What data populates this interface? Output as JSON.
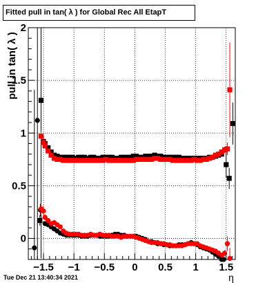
{
  "title": "Fitted pull in tan( λ ) for Global Rec All EtapT",
  "timestamp": "Tue Dec 21 13:40:34 2021",
  "chart_data": {
    "type": "scatter",
    "title": "Fitted pull in tan( λ ) for Global Rec All EtapT",
    "xlabel": "η",
    "ylabel": "pull in tan( λ )",
    "xlim": [
      -1.75,
      1.65
    ],
    "ylim": [
      -0.2,
      2.0
    ],
    "grid": true,
    "xticks": [
      -1.5,
      -1,
      -0.5,
      0,
      0.5,
      1,
      1.5
    ],
    "xtick_labels": [
      "−1.5",
      "−1",
      "−0.5",
      "0",
      "0.5",
      "1",
      "1.5"
    ],
    "yticks": [
      0,
      0.5,
      1,
      1.5,
      2
    ],
    "ytick_labels": [
      "0",
      "0.5",
      "1",
      "1.5",
      "2"
    ],
    "series": [
      {
        "color": "#000000",
        "marker": "circle",
        "x": [
          -1.65,
          -1.6,
          -1.55,
          -1.475,
          -1.425,
          -1.375,
          -1.325,
          -1.275,
          -1.225,
          -1.175,
          -1.125,
          -1.075,
          -1.025,
          -0.975,
          -0.925,
          -0.875,
          -0.825,
          -0.775,
          -0.725,
          -0.675,
          -0.625,
          -0.575,
          -0.525,
          -0.475,
          -0.425,
          -0.375,
          -0.325,
          -0.275,
          -0.225,
          -0.175,
          -0.125,
          -0.075,
          -0.025,
          0.025,
          0.075,
          0.125,
          0.175,
          0.225,
          0.275,
          0.325,
          0.375,
          0.425,
          0.475,
          0.525,
          0.575,
          0.625,
          0.675,
          0.725,
          0.775,
          0.825,
          0.875,
          0.925,
          0.975,
          1.025,
          1.075,
          1.125,
          1.175,
          1.225,
          1.275,
          1.325,
          1.375,
          1.425,
          1.46
        ],
        "y": [
          -0.09,
          1.12,
          0.27,
          0.14,
          0.13,
          0.11,
          0.09,
          0.07,
          0.05,
          0.04,
          0.03,
          0.03,
          0.03,
          0.03,
          0.03,
          0.02,
          0.02,
          0.02,
          0.03,
          0.03,
          0.03,
          0.02,
          0.02,
          0.02,
          0.02,
          0.03,
          0.04,
          0.04,
          0.03,
          0.03,
          0.02,
          0.02,
          0.02,
          0.02,
          0.01,
          0.0,
          -0.01,
          -0.03,
          -0.03,
          -0.04,
          -0.05,
          -0.05,
          -0.06,
          -0.06,
          -0.07,
          -0.07,
          -0.07,
          -0.06,
          -0.06,
          -0.06,
          -0.05,
          -0.04,
          -0.05,
          -0.06,
          -0.08,
          -0.09,
          -0.1,
          -0.11,
          -0.13,
          -0.15,
          -0.17,
          -0.2,
          -0.2
        ],
        "yerr": [
          1.5,
          1.5,
          0.06,
          0.02,
          0.02,
          0.02,
          0.02,
          0.02,
          0.02,
          0.02,
          0.02,
          0.02,
          0.02,
          0.02,
          0.02,
          0.02,
          0.02,
          0.02,
          0.02,
          0.02,
          0.02,
          0.02,
          0.02,
          0.02,
          0.02,
          0.02,
          0.02,
          0.02,
          0.02,
          0.02,
          0.02,
          0.02,
          0.02,
          0.02,
          0.02,
          0.02,
          0.02,
          0.02,
          0.02,
          0.02,
          0.02,
          0.02,
          0.02,
          0.02,
          0.02,
          0.02,
          0.02,
          0.02,
          0.02,
          0.02,
          0.02,
          0.02,
          0.02,
          0.02,
          0.02,
          0.02,
          0.02,
          0.02,
          0.02,
          0.02,
          0.02,
          0.02,
          0.02
        ]
      },
      {
        "color": "#000000",
        "marker": "square",
        "x": [
          -1.56,
          -1.54,
          -1.5,
          -1.475,
          -1.425,
          -1.375,
          -1.325,
          -1.275,
          -1.225,
          -1.175,
          -1.125,
          -1.075,
          -1.025,
          -0.975,
          -0.925,
          -0.875,
          -0.825,
          -0.775,
          -0.725,
          -0.675,
          -0.625,
          -0.575,
          -0.525,
          -0.475,
          -0.425,
          -0.375,
          -0.325,
          -0.275,
          -0.225,
          -0.175,
          -0.125,
          -0.075,
          -0.025,
          0.025,
          0.075,
          0.125,
          0.175,
          0.225,
          0.275,
          0.325,
          0.375,
          0.425,
          0.475,
          0.525,
          0.575,
          0.625,
          0.675,
          0.725,
          0.775,
          0.825,
          0.875,
          0.925,
          0.975,
          1.025,
          1.075,
          1.125,
          1.175,
          1.225,
          1.275,
          1.325,
          1.375,
          1.425,
          1.5,
          1.55,
          1.61
        ],
        "y": [
          0.17,
          1.31,
          0.92,
          0.9,
          0.86,
          0.82,
          0.79,
          0.78,
          0.77,
          0.77,
          0.77,
          0.77,
          0.77,
          0.76,
          0.77,
          0.77,
          0.77,
          0.76,
          0.77,
          0.77,
          0.76,
          0.76,
          0.77,
          0.77,
          0.77,
          0.77,
          0.76,
          0.76,
          0.77,
          0.77,
          0.77,
          0.77,
          0.78,
          0.78,
          0.77,
          0.77,
          0.78,
          0.78,
          0.78,
          0.79,
          0.78,
          0.78,
          0.77,
          0.77,
          0.77,
          0.77,
          0.77,
          0.77,
          0.76,
          0.76,
          0.76,
          0.76,
          0.76,
          0.76,
          0.76,
          0.76,
          0.76,
          0.77,
          0.77,
          0.78,
          0.79,
          0.8,
          0.7,
          0.57,
          1.09
        ],
        "yerr": [
          0.05,
          1.5,
          0.05,
          0.02,
          0.02,
          0.02,
          0.02,
          0.02,
          0.02,
          0.02,
          0.02,
          0.02,
          0.02,
          0.02,
          0.02,
          0.02,
          0.02,
          0.02,
          0.02,
          0.02,
          0.02,
          0.02,
          0.02,
          0.02,
          0.02,
          0.02,
          0.02,
          0.02,
          0.02,
          0.02,
          0.02,
          0.02,
          0.02,
          0.02,
          0.02,
          0.02,
          0.02,
          0.02,
          0.02,
          0.02,
          0.02,
          0.02,
          0.02,
          0.02,
          0.02,
          0.02,
          0.02,
          0.02,
          0.02,
          0.02,
          0.02,
          0.02,
          0.02,
          0.02,
          0.02,
          0.02,
          0.02,
          0.02,
          0.02,
          0.02,
          0.02,
          0.02,
          0.12,
          0.1,
          0.2
        ]
      },
      {
        "color": "#ff0000",
        "marker": "circle",
        "x": [
          -1.54,
          -1.5,
          -1.475,
          -1.425,
          -1.375,
          -1.325,
          -1.275,
          -1.225,
          -1.175,
          -1.125,
          -1.075,
          -1.025,
          -0.975,
          -0.925,
          -0.875,
          -0.825,
          -0.775,
          -0.725,
          -0.675,
          -0.625,
          -0.575,
          -0.525,
          -0.475,
          -0.425,
          -0.375,
          -0.325,
          -0.275,
          -0.225,
          -0.175,
          -0.125,
          -0.075,
          -0.025,
          0.025,
          0.075,
          0.125,
          0.175,
          0.225,
          0.275,
          0.325,
          0.375,
          0.425,
          0.475,
          0.525,
          0.575,
          0.625,
          0.675,
          0.725,
          0.775,
          0.825,
          0.875,
          0.925,
          0.975,
          1.025,
          1.075,
          1.125,
          1.175,
          1.225,
          1.275,
          1.325,
          1.375,
          1.425,
          1.475,
          1.52,
          1.56
        ],
        "y": [
          0.28,
          0.26,
          0.2,
          0.17,
          0.14,
          0.15,
          0.13,
          0.11,
          0.07,
          0.05,
          0.04,
          0.04,
          0.04,
          0.04,
          0.03,
          0.03,
          0.03,
          0.04,
          0.03,
          0.03,
          0.04,
          0.03,
          0.03,
          0.03,
          0.02,
          0.02,
          0.02,
          0.01,
          0.02,
          0.02,
          0.02,
          0.02,
          0.01,
          0.0,
          -0.01,
          -0.02,
          -0.03,
          -0.04,
          -0.04,
          -0.04,
          -0.05,
          -0.05,
          -0.06,
          -0.06,
          -0.07,
          -0.07,
          -0.07,
          -0.07,
          -0.06,
          -0.05,
          -0.05,
          -0.05,
          -0.05,
          -0.07,
          -0.08,
          -0.09,
          -0.1,
          -0.11,
          -0.12,
          -0.14,
          -0.16,
          -0.14,
          -0.05,
          -0.19
        ],
        "yerr": [
          0.06,
          0.05,
          0.03,
          0.02,
          0.02,
          0.02,
          0.02,
          0.02,
          0.02,
          0.02,
          0.02,
          0.02,
          0.02,
          0.02,
          0.02,
          0.02,
          0.02,
          0.02,
          0.02,
          0.02,
          0.02,
          0.02,
          0.02,
          0.02,
          0.02,
          0.02,
          0.02,
          0.02,
          0.02,
          0.02,
          0.02,
          0.02,
          0.02,
          0.02,
          0.02,
          0.02,
          0.02,
          0.02,
          0.02,
          0.02,
          0.02,
          0.02,
          0.02,
          0.02,
          0.02,
          0.02,
          0.02,
          0.02,
          0.02,
          0.02,
          0.02,
          0.02,
          0.02,
          0.02,
          0.02,
          0.02,
          0.02,
          0.02,
          0.02,
          0.02,
          0.02,
          0.03,
          0.07,
          0.1
        ]
      },
      {
        "color": "#ff0000",
        "marker": "square",
        "x": [
          -1.54,
          -1.5,
          -1.475,
          -1.425,
          -1.375,
          -1.325,
          -1.275,
          -1.225,
          -1.175,
          -1.125,
          -1.075,
          -1.025,
          -0.975,
          -0.925,
          -0.875,
          -0.825,
          -0.775,
          -0.725,
          -0.675,
          -0.625,
          -0.575,
          -0.525,
          -0.475,
          -0.425,
          -0.375,
          -0.325,
          -0.275,
          -0.225,
          -0.175,
          -0.125,
          -0.075,
          -0.025,
          0.025,
          0.075,
          0.125,
          0.175,
          0.225,
          0.275,
          0.325,
          0.375,
          0.425,
          0.475,
          0.525,
          0.575,
          0.625,
          0.675,
          0.725,
          0.775,
          0.825,
          0.875,
          0.925,
          0.975,
          1.025,
          1.075,
          1.125,
          1.175,
          1.225,
          1.275,
          1.325,
          1.375,
          1.425,
          1.475,
          1.52,
          1.56
        ],
        "y": [
          0.97,
          0.91,
          0.88,
          0.83,
          0.79,
          0.76,
          0.75,
          0.75,
          0.74,
          0.74,
          0.74,
          0.74,
          0.74,
          0.74,
          0.74,
          0.74,
          0.74,
          0.74,
          0.74,
          0.74,
          0.74,
          0.74,
          0.75,
          0.74,
          0.74,
          0.74,
          0.74,
          0.74,
          0.74,
          0.74,
          0.74,
          0.74,
          0.75,
          0.75,
          0.75,
          0.75,
          0.75,
          0.75,
          0.76,
          0.76,
          0.75,
          0.75,
          0.75,
          0.75,
          0.74,
          0.74,
          0.74,
          0.74,
          0.74,
          0.74,
          0.74,
          0.75,
          0.74,
          0.74,
          0.75,
          0.75,
          0.76,
          0.77,
          0.79,
          0.8,
          0.82,
          0.84,
          0.85,
          1.41
        ],
        "yerr": [
          0.05,
          0.05,
          0.03,
          0.02,
          0.02,
          0.02,
          0.02,
          0.02,
          0.02,
          0.02,
          0.02,
          0.02,
          0.02,
          0.02,
          0.02,
          0.02,
          0.02,
          0.02,
          0.02,
          0.02,
          0.02,
          0.02,
          0.02,
          0.02,
          0.02,
          0.02,
          0.02,
          0.02,
          0.02,
          0.02,
          0.02,
          0.02,
          0.02,
          0.02,
          0.02,
          0.02,
          0.02,
          0.02,
          0.02,
          0.02,
          0.02,
          0.02,
          0.02,
          0.02,
          0.02,
          0.02,
          0.02,
          0.02,
          0.02,
          0.02,
          0.02,
          0.02,
          0.02,
          0.02,
          0.02,
          0.02,
          0.02,
          0.02,
          0.02,
          0.02,
          0.02,
          0.03,
          0.06,
          0.45
        ]
      }
    ]
  }
}
